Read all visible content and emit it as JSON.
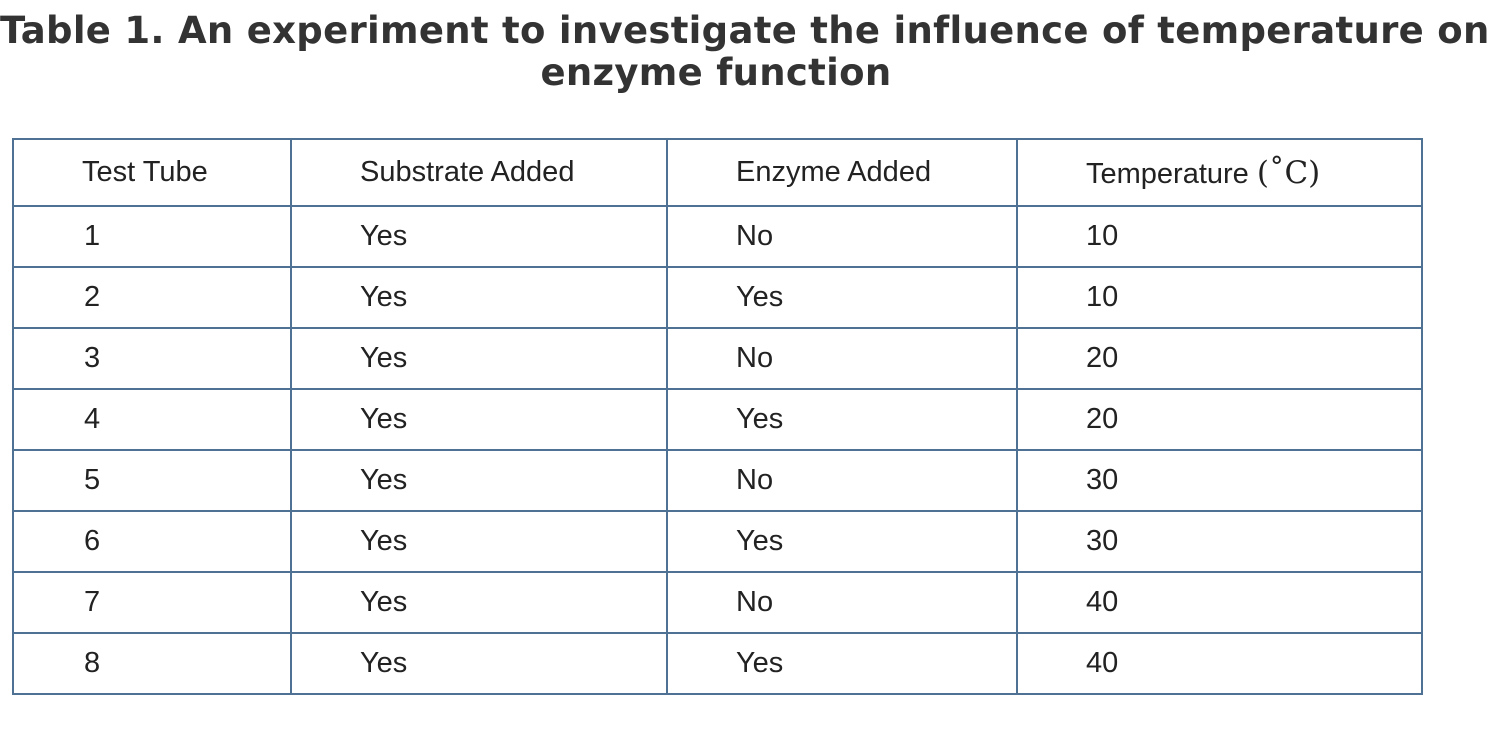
{
  "title": {
    "line1": "Table 1. An experiment to investigate the influence of temperature on",
    "line2": "enzyme function"
  },
  "table": {
    "headers": {
      "test_tube": "Test Tube",
      "substrate": "Substrate Added",
      "enzyme": "Enzyme Added",
      "temperature": "Temperature ",
      "temperature_unit": "(˚C)"
    },
    "rows": [
      {
        "tube": "1",
        "substrate": "Yes",
        "enzyme": "No",
        "temperature": "10"
      },
      {
        "tube": "2",
        "substrate": "Yes",
        "enzyme": "Yes",
        "temperature": "10"
      },
      {
        "tube": "3",
        "substrate": "Yes",
        "enzyme": "No",
        "temperature": "20"
      },
      {
        "tube": "4",
        "substrate": "Yes",
        "enzyme": "Yes",
        "temperature": "20"
      },
      {
        "tube": "5",
        "substrate": "Yes",
        "enzyme": "No",
        "temperature": "30"
      },
      {
        "tube": "6",
        "substrate": "Yes",
        "enzyme": "Yes",
        "temperature": "30"
      },
      {
        "tube": "7",
        "substrate": "Yes",
        "enzyme": "No",
        "temperature": "40"
      },
      {
        "tube": "8",
        "substrate": "Yes",
        "enzyme": "Yes",
        "temperature": "40"
      }
    ]
  },
  "colors": {
    "border": "#4f7194",
    "title_text": "#333333",
    "cell_text": "#222222"
  }
}
